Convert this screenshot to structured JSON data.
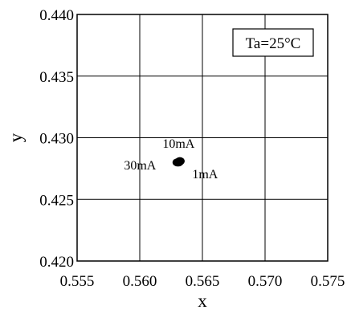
{
  "chart_data": {
    "type": "scatter",
    "title": "",
    "xlabel": "x",
    "ylabel": "y",
    "xlim": [
      0.555,
      0.575
    ],
    "ylim": [
      0.42,
      0.44
    ],
    "grid": true,
    "x_ticks": [
      "0.555",
      "0.560",
      "0.565",
      "0.570",
      "0.575"
    ],
    "y_ticks": [
      "0.420",
      "0.425",
      "0.430",
      "0.435",
      "0.440"
    ],
    "series": [
      {
        "points": [
          {
            "x": 0.5631,
            "y": 0.428,
            "label": "1mA"
          },
          {
            "x": 0.5632,
            "y": 0.4281,
            "label": "10mA"
          },
          {
            "x": 0.563,
            "y": 0.428,
            "label": "30mA"
          }
        ]
      }
    ],
    "annotations": [
      "10mA",
      "30mA",
      "1mA"
    ],
    "condition_label": "Ta=25°C"
  }
}
